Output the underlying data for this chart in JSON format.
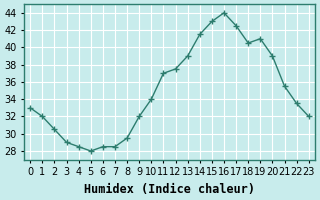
{
  "x": [
    0,
    1,
    2,
    3,
    4,
    5,
    6,
    7,
    8,
    9,
    10,
    11,
    12,
    13,
    14,
    15,
    16,
    17,
    18,
    19,
    20,
    21,
    22,
    23
  ],
  "y": [
    33,
    32,
    30.5,
    29,
    28.5,
    28,
    28.5,
    28.5,
    29.5,
    32,
    34,
    37,
    37.5,
    39,
    41.5,
    43,
    44,
    42.5,
    40.5,
    41,
    39,
    35.5,
    33.5,
    32
  ],
  "line_color": "#2d7d6e",
  "marker": "+",
  "marker_size": 4,
  "bg_color": "#c8ecec",
  "grid_color": "#ffffff",
  "xlabel": "Humidex (Indice chaleur)",
  "ylabel": "",
  "ylim": [
    27,
    45
  ],
  "yticks": [
    28,
    30,
    32,
    34,
    36,
    38,
    40,
    42,
    44
  ],
  "xticks": [
    0,
    1,
    2,
    3,
    4,
    5,
    6,
    7,
    8,
    9,
    10,
    11,
    12,
    13,
    14,
    15,
    16,
    17,
    18,
    19,
    20,
    21,
    22,
    23
  ],
  "tick_fontsize": 7,
  "xlabel_fontsize": 8.5,
  "axis_color": "#2d7d6e"
}
